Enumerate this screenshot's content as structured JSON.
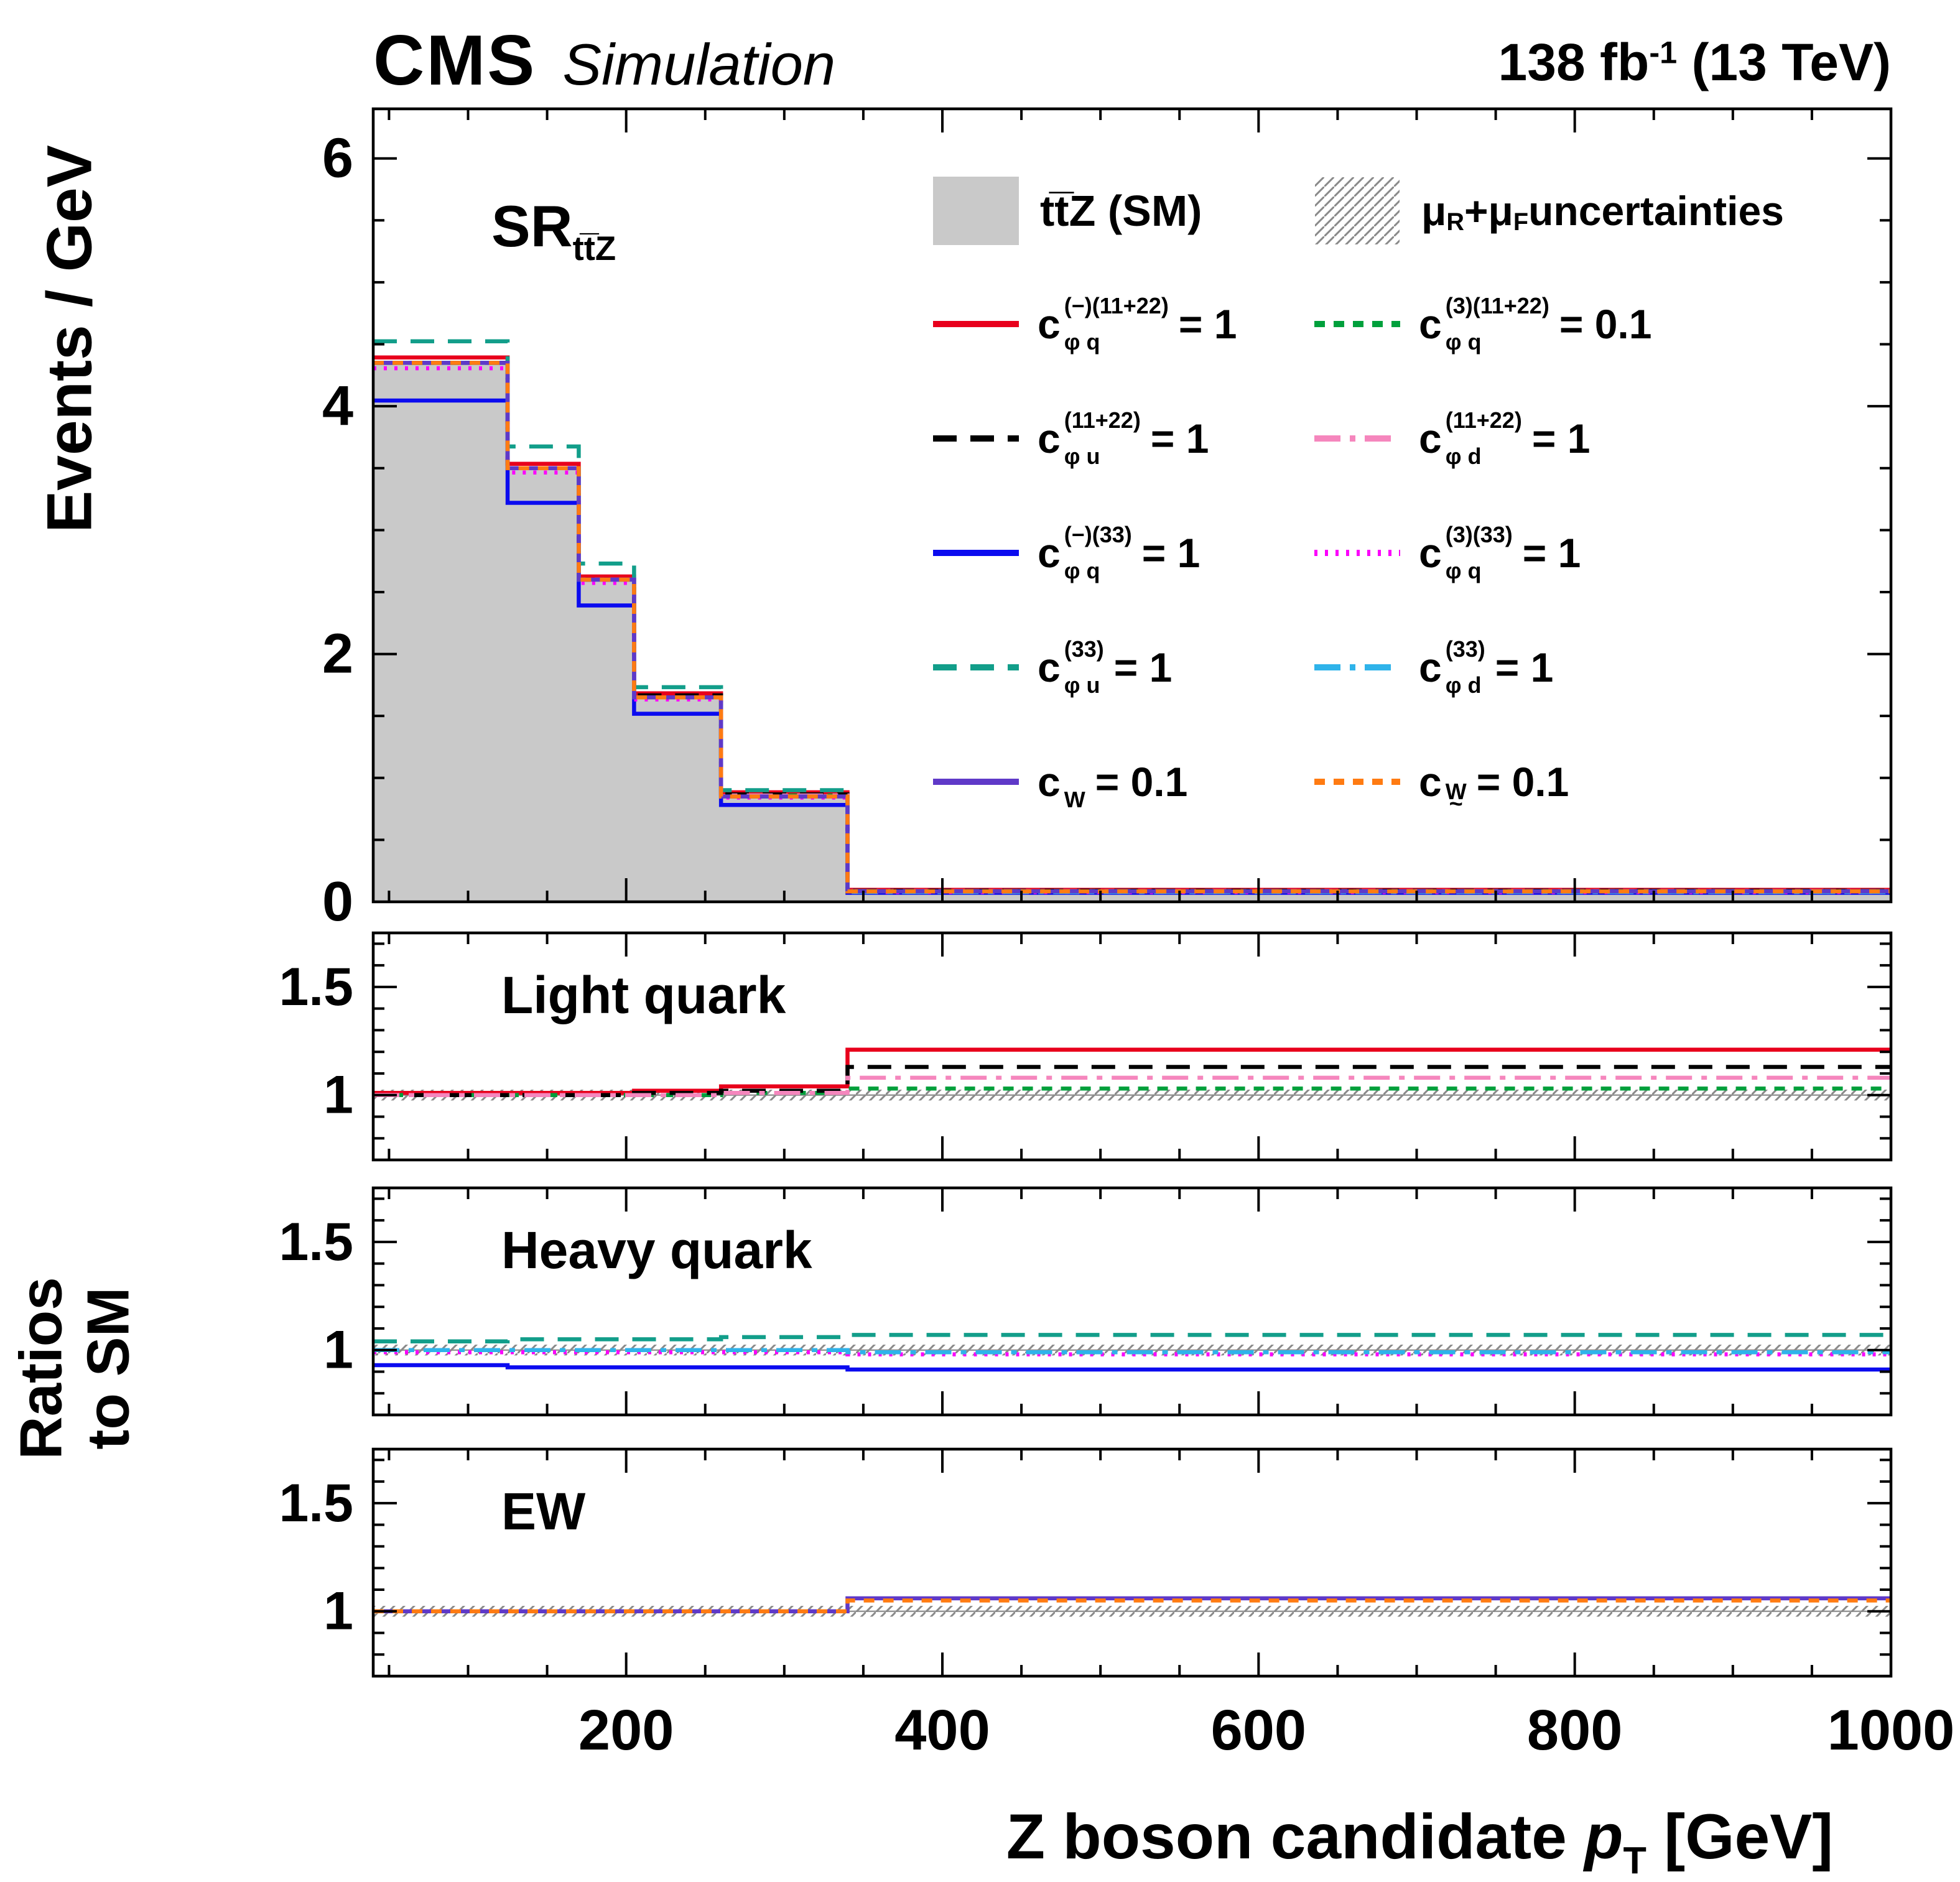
{
  "header": {
    "experiment": "CMS",
    "label": "Simulation",
    "lumi_value": "138 fb",
    "lumi_sup": "-1",
    "lumi_suffix": " (13 TeV)"
  },
  "region": {
    "name": "SR",
    "sub": "tt̅Z"
  },
  "axes": {
    "y_main": "Events / GeV",
    "y_ratio_line1": "Ratios",
    "y_ratio_line2": "to SM",
    "x_pre": "Z boson candidate ",
    "x_var": "p",
    "x_sub": "T",
    "x_post": " [GeV]"
  },
  "legend": {
    "sm_label": "tt̅Z (SM)",
    "unc_mu1": "μ",
    "unc_sub1": "R",
    "unc_plus": " + ",
    "unc_mu2": "μ",
    "unc_sub2": "F",
    "unc_rest": " uncertainties"
  },
  "chart_data": {
    "type": "histogram",
    "title": "CMS Simulation, SR ttZ, Z boson candidate pT",
    "x_range": [
      40,
      1000
    ],
    "bin_edges": [
      40,
      125,
      170,
      205,
      260,
      340,
      1000
    ],
    "x_major_ticks": [
      200,
      400,
      600,
      800,
      1000
    ],
    "x_minor_step": 50,
    "main_panel": {
      "ylabel": "Events / GeV",
      "y_range": [
        0,
        6.4
      ],
      "y_major_ticks": [
        0,
        2,
        4,
        6
      ],
      "y_minor_step": 0.5,
      "sm_label": "ttZ (SM)",
      "sm_fill_color": "#c9c9c9",
      "sm_values": [
        4.35,
        3.5,
        2.6,
        1.65,
        0.85,
        0.08
      ]
    },
    "ratio_panels": [
      {
        "id": "light",
        "title": "Light quark",
        "y_range": [
          0.7,
          1.75
        ],
        "y_major_ticks": [
          1,
          1.5
        ],
        "y_minor_step": 0.1
      },
      {
        "id": "heavy",
        "title": "Heavy quark",
        "y_range": [
          0.7,
          1.75
        ],
        "y_major_ticks": [
          1,
          1.5
        ],
        "y_minor_step": 0.1
      },
      {
        "id": "ew",
        "title": "EW",
        "y_range": [
          0.7,
          1.75
        ],
        "y_major_ticks": [
          1,
          1.5
        ],
        "y_minor_step": 0.1
      }
    ],
    "uncertainty_band": {
      "label": "muR + muF uncertainties",
      "low": 0.975,
      "high": 1.025,
      "hatch_color": "#8a8a8a"
    },
    "series": [
      {
        "name": "cphiq-minus-1122",
        "sub": "φ q",
        "sup": "(−)(11+22)",
        "value": "= 1",
        "color": "#e8001c",
        "style": "solid",
        "panel": "light",
        "ratios": [
          1.01,
          1.01,
          1.01,
          1.02,
          1.04,
          1.21
        ]
      },
      {
        "name": "cphiq-3-1122",
        "sub": "φ q",
        "sup": "(3)(11+22)",
        "value": "= 0.1",
        "color": "#00a03c",
        "style": "dash-short",
        "panel": "light",
        "ratios": [
          1.0,
          1.0,
          1.0,
          1.0,
          1.01,
          1.03
        ]
      },
      {
        "name": "cphiu-1122",
        "sub": "φ u",
        "sup": "(11+22)",
        "value": "= 1",
        "color": "#000000",
        "style": "dash-long",
        "panel": "light",
        "ratios": [
          1.0,
          1.0,
          1.0,
          1.01,
          1.02,
          1.13
        ]
      },
      {
        "name": "cphid-1122",
        "sub": "φ d",
        "sup": "(11+22)",
        "value": "= 1",
        "color": "#f586bd",
        "style": "dash-dot",
        "panel": "light",
        "ratios": [
          1.0,
          1.0,
          1.0,
          1.0,
          1.01,
          1.08
        ]
      },
      {
        "name": "cphiq-minus-33",
        "sub": "φ q",
        "sup": "(−)(33)",
        "value": "= 1",
        "color": "#0b0bef",
        "style": "solid",
        "panel": "heavy",
        "ratios": [
          0.93,
          0.92,
          0.92,
          0.92,
          0.92,
          0.91
        ]
      },
      {
        "name": "cphiq-3-33",
        "sub": "φ q",
        "sup": "(3)(33)",
        "value": "= 1",
        "color": "#fb00fb",
        "style": "dotted",
        "panel": "heavy",
        "ratios": [
          0.99,
          0.99,
          0.99,
          0.99,
          0.99,
          0.98
        ]
      },
      {
        "name": "cphiu-33",
        "sub": "φ u",
        "sup": "(33)",
        "value": "= 1",
        "color": "#129e8a",
        "style": "dash-long",
        "panel": "heavy",
        "ratios": [
          1.04,
          1.05,
          1.05,
          1.05,
          1.06,
          1.07
        ]
      },
      {
        "name": "cphid-33",
        "sub": "φ d",
        "sup": "(33)",
        "value": "= 1",
        "color": "#2fb3ea",
        "style": "dash-dot",
        "panel": "heavy",
        "ratios": [
          1.0,
          1.0,
          1.0,
          1.0,
          1.0,
          0.99
        ]
      },
      {
        "name": "cW",
        "sub": "W",
        "sup": "",
        "value": "= 0.1",
        "color": "#5f39c8",
        "style": "solid",
        "panel": "ew",
        "ratios": [
          1.0,
          1.0,
          1.0,
          1.0,
          1.0,
          1.06
        ]
      },
      {
        "name": "cWtilde",
        "sub": "W",
        "sub_under": "~",
        "sup": "",
        "value": "= 0.1",
        "color": "#ff7b12",
        "style": "dash-short",
        "panel": "ew",
        "ratios": [
          1.0,
          1.0,
          1.0,
          1.0,
          1.0,
          1.05
        ]
      }
    ]
  }
}
